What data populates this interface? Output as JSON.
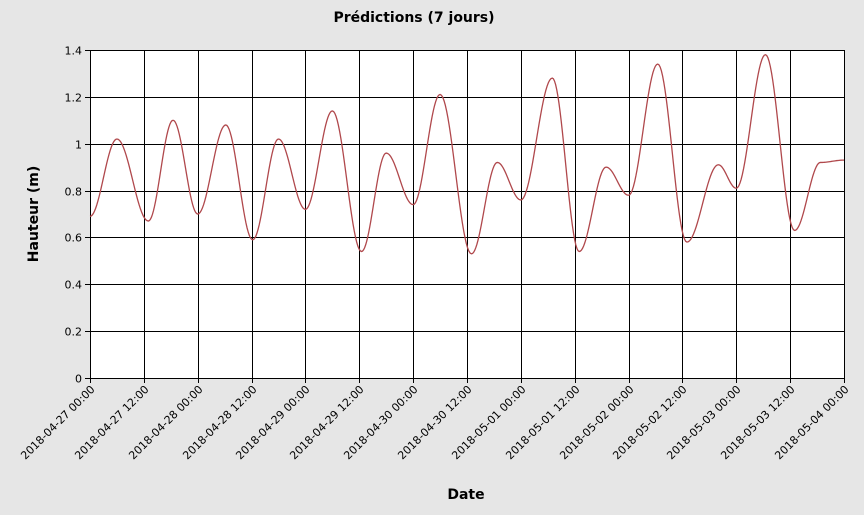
{
  "chart_data": {
    "type": "line",
    "title": "Prédictions (7 jours)",
    "xlabel": "Date",
    "ylabel": "Hauteur (m)",
    "ylim": [
      0,
      1.4
    ],
    "yticks": [
      "0",
      "0.2",
      "0.4",
      "0.6",
      "0.8",
      "1",
      "1.2",
      "1.4"
    ],
    "xlim": [
      "2018-04-27 00:00",
      "2018-05-04 00:00"
    ],
    "xticks": [
      "2018-04-27  00:00",
      "2018-04-27  12:00",
      "2018-04-28  00:00",
      "2018-04-28  12:00",
      "2018-04-29  00:00",
      "2018-04-29  12:00",
      "2018-04-30  00:00",
      "2018-04-30  12:00",
      "2018-05-01  00:00",
      "2018-05-01  12:00",
      "2018-05-02  00:00",
      "2018-05-02  12:00",
      "2018-05-03  00:00",
      "2018-05-03  12:00",
      "2018-05-04  00:00"
    ],
    "grid": true,
    "series": [
      {
        "color": "#b0484c",
        "points": [
          [
            "2018-04-27 00:00",
            0.69
          ],
          [
            "2018-04-27 06:00",
            1.02
          ],
          [
            "2018-04-27 13:00",
            0.67
          ],
          [
            "2018-04-27 18:30",
            1.1
          ],
          [
            "2018-04-28 00:00",
            0.7
          ],
          [
            "2018-04-28 06:15",
            1.08
          ],
          [
            "2018-04-28 12:15",
            0.59
          ],
          [
            "2018-04-28 18:00",
            1.02
          ],
          [
            "2018-04-29 00:00",
            0.72
          ],
          [
            "2018-04-29 06:00",
            1.14
          ],
          [
            "2018-04-29 12:30",
            0.54
          ],
          [
            "2018-04-29 18:00",
            0.96
          ],
          [
            "2018-04-30 00:00",
            0.74
          ],
          [
            "2018-04-30 06:00",
            1.21
          ],
          [
            "2018-04-30 13:00",
            0.53
          ],
          [
            "2018-04-30 18:45",
            0.92
          ],
          [
            "2018-05-01 00:00",
            0.76
          ],
          [
            "2018-05-01 07:00",
            1.28
          ],
          [
            "2018-05-01 13:00",
            0.54
          ],
          [
            "2018-05-01 19:00",
            0.9
          ],
          [
            "2018-05-02 00:00",
            0.78
          ],
          [
            "2018-05-02 06:30",
            1.34
          ],
          [
            "2018-05-02 13:00",
            0.58
          ],
          [
            "2018-05-02 20:00",
            0.91
          ],
          [
            "2018-05-03 00:00",
            0.81
          ],
          [
            "2018-05-03 06:30",
            1.38
          ],
          [
            "2018-05-03 13:00",
            0.63
          ],
          [
            "2018-05-03 18:45",
            0.92
          ],
          [
            "2018-05-04 00:00",
            0.93
          ]
        ]
      }
    ]
  }
}
